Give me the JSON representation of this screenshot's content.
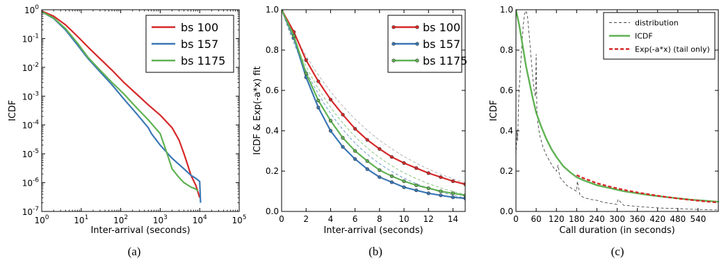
{
  "colors": {
    "bs100": "#d62728",
    "bs157": "#3a77b5",
    "bs1175": "#5fb152",
    "dist": "#444444",
    "fit": "#9a9a9a",
    "tail": "#d62728"
  },
  "chart_data": [
    {
      "type": "line",
      "panel": "a",
      "caption": "(a)",
      "xlabel": "Inter-arrival (seconds)",
      "ylabel": "ICDF",
      "xscale": "log",
      "yscale": "log",
      "xlim": [
        1,
        100000
      ],
      "ylim": [
        1e-07,
        1
      ],
      "xticks": [
        1,
        10,
        100,
        1000,
        10000,
        100000
      ],
      "xtick_labels": [
        {
          "b": "10",
          "e": "0"
        },
        {
          "b": "10",
          "e": "1"
        },
        {
          "b": "10",
          "e": "2"
        },
        {
          "b": "10",
          "e": "3"
        },
        {
          "b": "10",
          "e": "4"
        },
        {
          "b": "10",
          "e": "5"
        }
      ],
      "yticks": [
        1e-07,
        1e-06,
        1e-05,
        0.0001,
        0.001,
        0.01,
        0.1,
        1
      ],
      "ytick_labels": [
        {
          "b": "10",
          "e": "-7"
        },
        {
          "b": "10",
          "e": "-6"
        },
        {
          "b": "10",
          "e": "-5"
        },
        {
          "b": "10",
          "e": "-4"
        },
        {
          "b": "10",
          "e": "-3"
        },
        {
          "b": "10",
          "e": "-2"
        },
        {
          "b": "10",
          "e": "-1"
        },
        {
          "b": "10",
          "e": "0"
        }
      ],
      "legend": "top-right",
      "series": [
        {
          "name": "bs 100",
          "color": "#d62728",
          "x": [
            1,
            2,
            4,
            8,
            15,
            30,
            60,
            120,
            250,
            500,
            1000,
            2000,
            3000,
            4000,
            5000,
            6000,
            8000,
            10000
          ],
          "y": [
            0.9,
            0.6,
            0.3,
            0.12,
            0.05,
            0.02,
            0.008,
            0.003,
            0.0012,
            0.0005,
            0.00022,
            8e-05,
            3e-05,
            1e-05,
            4e-06,
            1.8e-06,
            8e-07,
            3e-07
          ]
        },
        {
          "name": "bs 157",
          "color": "#3a77b5",
          "x": [
            1,
            2,
            4,
            8,
            15,
            30,
            60,
            120,
            250,
            500,
            600,
            1000,
            2000,
            4000,
            6000,
            8000,
            10000,
            10500
          ],
          "y": [
            0.85,
            0.5,
            0.2,
            0.06,
            0.02,
            0.007,
            0.0025,
            0.0008,
            0.00025,
            8e-05,
            5e-05,
            2e-05,
            7e-06,
            3e-06,
            1.8e-06,
            1.4e-06,
            1.1e-06,
            2e-07
          ]
        },
        {
          "name": "bs 1175",
          "color": "#5fb152",
          "x": [
            1,
            2,
            4,
            8,
            15,
            30,
            60,
            120,
            250,
            500,
            1000,
            1500,
            2000,
            3000,
            4000,
            6000,
            8000,
            9000
          ],
          "y": [
            0.85,
            0.52,
            0.22,
            0.07,
            0.022,
            0.008,
            0.003,
            0.0012,
            0.0004,
            0.00015,
            5e-05,
            1e-05,
            3e-06,
            1.5e-06,
            1e-06,
            7e-07,
            6e-07,
            5e-07
          ]
        }
      ]
    },
    {
      "type": "line",
      "panel": "b",
      "caption": "(b)",
      "xlabel": "Inter-arrival (seconds)",
      "ylabel": "ICDF & Exp(-a*x) fit",
      "xlim": [
        0,
        15
      ],
      "ylim": [
        0,
        1.0
      ],
      "xticks": [
        0,
        2,
        4,
        6,
        8,
        10,
        12,
        14
      ],
      "yticks": [
        0.0,
        0.2,
        0.4,
        0.6,
        0.8,
        1.0
      ],
      "ytick_labels": [
        "0.0",
        "0.2",
        "0.4",
        "0.6",
        "0.8",
        "1.0"
      ],
      "legend": "top-right",
      "x": [
        0,
        1,
        2,
        3,
        4,
        5,
        6,
        7,
        8,
        9,
        10,
        11,
        12,
        13,
        14,
        15
      ],
      "series": [
        {
          "name": "bs 100",
          "color": "#d62728",
          "fit_rate": 0.13,
          "values": [
            1.0,
            0.89,
            0.75,
            0.645,
            0.555,
            0.48,
            0.41,
            0.355,
            0.31,
            0.27,
            0.24,
            0.215,
            0.19,
            0.17,
            0.15,
            0.135
          ]
        },
        {
          "name": "bs 157",
          "color": "#3a77b5",
          "fit_rate": 0.18,
          "values": [
            1.0,
            0.86,
            0.665,
            0.515,
            0.4,
            0.32,
            0.26,
            0.21,
            0.17,
            0.145,
            0.12,
            0.105,
            0.09,
            0.08,
            0.07,
            0.065
          ]
        },
        {
          "name": "bs 1175",
          "color": "#5fb152",
          "fit_rate": 0.165,
          "values": [
            1.0,
            0.87,
            0.685,
            0.55,
            0.45,
            0.365,
            0.3,
            0.25,
            0.205,
            0.175,
            0.15,
            0.13,
            0.115,
            0.1,
            0.09,
            0.08
          ]
        }
      ]
    },
    {
      "type": "line",
      "panel": "c",
      "caption": "(c)",
      "xlabel": "Call duration (in seconds)",
      "ylabel": "ICDF",
      "xlim": [
        0,
        600
      ],
      "ylim": [
        0,
        1.0
      ],
      "xticks": [
        0,
        60,
        120,
        180,
        240,
        300,
        360,
        420,
        480,
        540
      ],
      "yticks": [
        0.0,
        0.2,
        0.4,
        0.6,
        0.8,
        1.0
      ],
      "ytick_labels": [
        "0.0",
        "0.2",
        "0.4",
        "0.6",
        "0.8",
        "1.0"
      ],
      "legend": "top-right",
      "series": [
        {
          "name": "distribution",
          "color": "#444444",
          "style": "dashed",
          "x": [
            0,
            3,
            5,
            8,
            10,
            14,
            18,
            22,
            26,
            30,
            34,
            38,
            42,
            46,
            50,
            54,
            58,
            60,
            62,
            65,
            70,
            80,
            90,
            100,
            110,
            120,
            125,
            130,
            140,
            150,
            160,
            170,
            180,
            182,
            190,
            200,
            220,
            240,
            260,
            280,
            300,
            302,
            320,
            340,
            360,
            380,
            400,
            420,
            440,
            460,
            480,
            500,
            520,
            540,
            560,
            580,
            600
          ],
          "y": [
            0.28,
            0.4,
            0.35,
            0.55,
            0.62,
            0.73,
            0.84,
            0.93,
            0.98,
            0.995,
            0.97,
            0.9,
            0.82,
            0.74,
            0.66,
            0.6,
            0.57,
            0.78,
            0.5,
            0.44,
            0.38,
            0.32,
            0.28,
            0.25,
            0.22,
            0.2,
            0.23,
            0.17,
            0.15,
            0.13,
            0.12,
            0.11,
            0.1,
            0.15,
            0.08,
            0.07,
            0.06,
            0.055,
            0.045,
            0.04,
            0.035,
            0.06,
            0.03,
            0.028,
            0.025,
            0.022,
            0.02,
            0.018,
            0.016,
            0.015,
            0.014,
            0.012,
            0.011,
            0.01,
            0.009,
            0.008,
            0.007
          ]
        },
        {
          "name": "ICDF",
          "color": "#5fb152",
          "style": "solid",
          "x": [
            0,
            10,
            20,
            30,
            40,
            50,
            60,
            75,
            90,
            105,
            120,
            140,
            160,
            180,
            200,
            240,
            280,
            320,
            360,
            400,
            440,
            480,
            520,
            560,
            600
          ],
          "y": [
            1.0,
            0.92,
            0.82,
            0.72,
            0.64,
            0.56,
            0.49,
            0.42,
            0.36,
            0.31,
            0.27,
            0.225,
            0.195,
            0.17,
            0.155,
            0.13,
            0.115,
            0.1,
            0.09,
            0.08,
            0.072,
            0.065,
            0.058,
            0.053,
            0.048
          ]
        },
        {
          "name": "Exp(-a*x) (tail only)",
          "color": "#d62728",
          "style": "dashed",
          "x": [
            180,
            200,
            240,
            280,
            320,
            360,
            400,
            440,
            480,
            520,
            560,
            600
          ],
          "y": [
            0.18,
            0.165,
            0.14,
            0.122,
            0.107,
            0.094,
            0.083,
            0.073,
            0.064,
            0.057,
            0.05,
            0.044
          ]
        }
      ]
    }
  ]
}
